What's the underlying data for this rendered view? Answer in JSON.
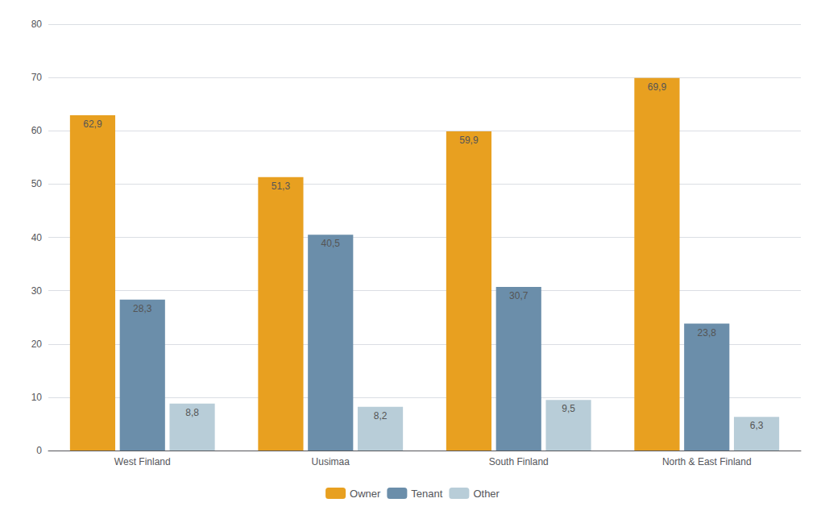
{
  "chart_data": {
    "type": "bar",
    "categories": [
      "West Finland",
      "Uusimaa",
      "South Finland",
      "North & East Finland"
    ],
    "series": [
      {
        "name": "Owner",
        "color": "#E8A020",
        "values": [
          62.9,
          51.3,
          59.9,
          69.9
        ],
        "value_labels": [
          "62,9",
          "51,3",
          "59,9",
          "69,9"
        ]
      },
      {
        "name": "Tenant",
        "color": "#6B8EAA",
        "values": [
          28.3,
          40.5,
          30.7,
          23.8
        ],
        "value_labels": [
          "28,3",
          "40,5",
          "30,7",
          "23,8"
        ]
      },
      {
        "name": "Other",
        "color": "#B8CDD8",
        "values": [
          8.8,
          8.2,
          9.5,
          6.3
        ],
        "value_labels": [
          "8,8",
          "8,2",
          "9,5",
          "6,3"
        ]
      }
    ],
    "ylim": [
      0,
      80
    ],
    "yticks": [
      0,
      10,
      20,
      30,
      40,
      50,
      60,
      70,
      80
    ],
    "grid": true,
    "data_labels": true,
    "legend": "bottom"
  }
}
